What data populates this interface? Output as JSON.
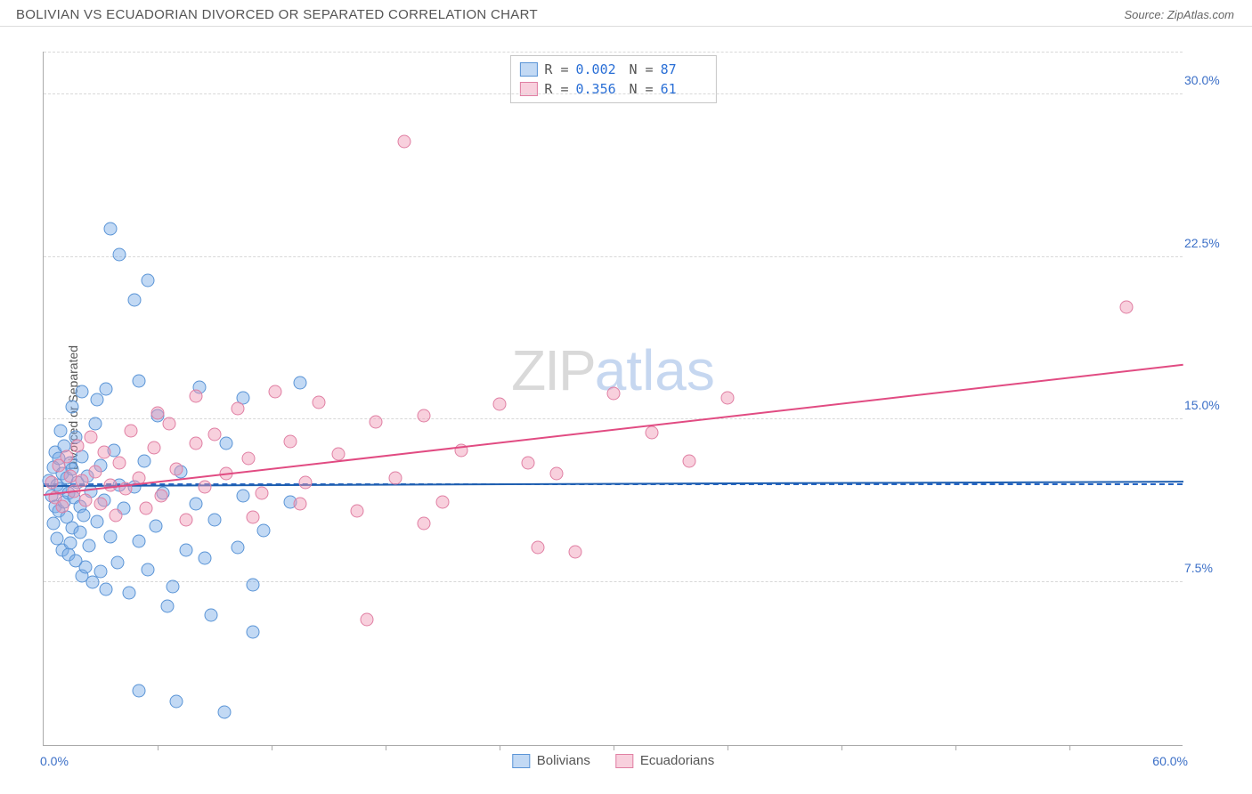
{
  "header": {
    "title": "BOLIVIAN VS ECUADORIAN DIVORCED OR SEPARATED CORRELATION CHART",
    "source": "Source: ZipAtlas.com"
  },
  "chart": {
    "type": "scatter",
    "ylabel": "Divorced or Separated",
    "background_color": "#ffffff",
    "grid_color": "#d8d8d8",
    "axis_color": "#aaaaaa",
    "tick_label_color": "#3b6fc7",
    "x": {
      "min": 0,
      "max": 60,
      "origin_label": "0.0%",
      "max_label": "60.0%",
      "tick_step": 6
    },
    "y": {
      "min": 0,
      "max": 32,
      "ticks": [
        7.5,
        15.0,
        22.5,
        30.0
      ],
      "tick_labels": [
        "7.5%",
        "15.0%",
        "22.5%",
        "30.0%"
      ]
    },
    "avg_line": {
      "y": 12.0,
      "color": "#2766c4"
    },
    "watermark": {
      "part1": "ZIP",
      "part2": "atlas"
    },
    "series": [
      {
        "name": "Bolivians",
        "fill": "rgba(120,170,230,0.45)",
        "stroke": "#5a94d6",
        "trend": {
          "color": "#1f5fb0",
          "y_at_x0": 11.9,
          "y_at_xmax": 12.1
        },
        "stats": {
          "r": "0.002",
          "n": "87"
        },
        "points": [
          [
            0.3,
            12.2
          ],
          [
            0.4,
            11.5
          ],
          [
            0.5,
            12.8
          ],
          [
            0.5,
            10.2
          ],
          [
            0.6,
            13.5
          ],
          [
            0.6,
            11.0
          ],
          [
            0.7,
            12.0
          ],
          [
            0.7,
            9.5
          ],
          [
            0.8,
            13.2
          ],
          [
            0.8,
            10.8
          ],
          [
            0.9,
            11.8
          ],
          [
            0.9,
            14.5
          ],
          [
            1.0,
            12.5
          ],
          [
            1.0,
            9.0
          ],
          [
            1.1,
            11.2
          ],
          [
            1.1,
            13.8
          ],
          [
            1.2,
            10.5
          ],
          [
            1.2,
            12.3
          ],
          [
            1.3,
            8.8
          ],
          [
            1.3,
            11.6
          ],
          [
            1.4,
            13.0
          ],
          [
            1.4,
            9.3
          ],
          [
            1.5,
            12.7
          ],
          [
            1.5,
            10.0
          ],
          [
            1.6,
            11.4
          ],
          [
            1.7,
            8.5
          ],
          [
            1.7,
            14.2
          ],
          [
            1.8,
            12.1
          ],
          [
            1.9,
            9.8
          ],
          [
            1.9,
            11.0
          ],
          [
            2.0,
            7.8
          ],
          [
            2.0,
            13.3
          ],
          [
            2.1,
            10.6
          ],
          [
            2.2,
            8.2
          ],
          [
            2.3,
            12.4
          ],
          [
            2.4,
            9.2
          ],
          [
            2.5,
            11.7
          ],
          [
            2.6,
            7.5
          ],
          [
            2.7,
            14.8
          ],
          [
            2.8,
            10.3
          ],
          [
            3.0,
            8.0
          ],
          [
            3.0,
            12.9
          ],
          [
            3.2,
            11.3
          ],
          [
            3.3,
            7.2
          ],
          [
            3.5,
            9.6
          ],
          [
            3.7,
            13.6
          ],
          [
            3.9,
            8.4
          ],
          [
            4.0,
            12.0
          ],
          [
            4.2,
            10.9
          ],
          [
            4.5,
            7.0
          ],
          [
            4.8,
            11.9
          ],
          [
            5.0,
            9.4
          ],
          [
            5.3,
            13.1
          ],
          [
            5.5,
            8.1
          ],
          [
            5.9,
            10.1
          ],
          [
            6.3,
            11.6
          ],
          [
            6.8,
            7.3
          ],
          [
            7.2,
            12.6
          ],
          [
            7.5,
            9.0
          ],
          [
            8.0,
            11.1
          ],
          [
            8.5,
            8.6
          ],
          [
            9.0,
            10.4
          ],
          [
            9.6,
            13.9
          ],
          [
            10.5,
            11.5
          ],
          [
            11.0,
            7.4
          ],
          [
            11.6,
            9.9
          ],
          [
            3.5,
            23.8
          ],
          [
            4.0,
            22.6
          ],
          [
            5.5,
            21.4
          ],
          [
            4.8,
            20.5
          ],
          [
            2.0,
            16.3
          ],
          [
            2.8,
            15.9
          ],
          [
            3.3,
            16.4
          ],
          [
            1.5,
            15.6
          ],
          [
            5.0,
            16.8
          ],
          [
            6.0,
            15.2
          ],
          [
            8.2,
            16.5
          ],
          [
            10.5,
            16.0
          ],
          [
            10.2,
            9.1
          ],
          [
            13.0,
            11.2
          ],
          [
            13.5,
            16.7
          ],
          [
            5.0,
            2.5
          ],
          [
            7.0,
            2.0
          ],
          [
            9.5,
            1.5
          ],
          [
            11.0,
            5.2
          ],
          [
            6.5,
            6.4
          ],
          [
            8.8,
            6.0
          ]
        ]
      },
      {
        "name": "Ecuadorians",
        "fill": "rgba(240,150,180,0.45)",
        "stroke": "#e07fa3",
        "trend": {
          "color": "#e14b82",
          "y_at_x0": 11.5,
          "y_at_xmax": 17.5
        },
        "stats": {
          "r": "0.356",
          "n": "61"
        },
        "points": [
          [
            0.4,
            12.1
          ],
          [
            0.6,
            11.4
          ],
          [
            0.8,
            12.9
          ],
          [
            1.0,
            11.0
          ],
          [
            1.2,
            13.3
          ],
          [
            1.4,
            12.4
          ],
          [
            1.6,
            11.7
          ],
          [
            1.8,
            13.8
          ],
          [
            2.0,
            12.2
          ],
          [
            2.2,
            11.3
          ],
          [
            2.5,
            14.2
          ],
          [
            2.7,
            12.6
          ],
          [
            3.0,
            11.1
          ],
          [
            3.2,
            13.5
          ],
          [
            3.5,
            12.0
          ],
          [
            3.8,
            10.6
          ],
          [
            4.0,
            13.0
          ],
          [
            4.3,
            11.8
          ],
          [
            4.6,
            14.5
          ],
          [
            5.0,
            12.3
          ],
          [
            5.4,
            10.9
          ],
          [
            5.8,
            13.7
          ],
          [
            6.2,
            11.5
          ],
          [
            6.6,
            14.8
          ],
          [
            7.0,
            12.7
          ],
          [
            7.5,
            10.4
          ],
          [
            8.0,
            13.9
          ],
          [
            8.5,
            11.9
          ],
          [
            9.0,
            14.3
          ],
          [
            9.6,
            12.5
          ],
          [
            10.2,
            15.5
          ],
          [
            10.8,
            13.2
          ],
          [
            11.5,
            11.6
          ],
          [
            12.2,
            16.3
          ],
          [
            13.0,
            14.0
          ],
          [
            13.8,
            12.1
          ],
          [
            14.5,
            15.8
          ],
          [
            15.5,
            13.4
          ],
          [
            16.5,
            10.8
          ],
          [
            17.5,
            14.9
          ],
          [
            18.5,
            12.3
          ],
          [
            20.0,
            15.2
          ],
          [
            21.0,
            11.2
          ],
          [
            22.0,
            13.6
          ],
          [
            19.0,
            27.8
          ],
          [
            24.0,
            15.7
          ],
          [
            25.5,
            13.0
          ],
          [
            27.0,
            12.5
          ],
          [
            28.0,
            8.9
          ],
          [
            30.0,
            16.2
          ],
          [
            32.0,
            14.4
          ],
          [
            34.0,
            13.1
          ],
          [
            36.0,
            16.0
          ],
          [
            17.0,
            5.8
          ],
          [
            20.0,
            10.2
          ],
          [
            26.0,
            9.1
          ],
          [
            11.0,
            10.5
          ],
          [
            13.5,
            11.1
          ],
          [
            6.0,
            15.3
          ],
          [
            8.0,
            16.1
          ],
          [
            57.0,
            20.2
          ]
        ]
      }
    ]
  }
}
